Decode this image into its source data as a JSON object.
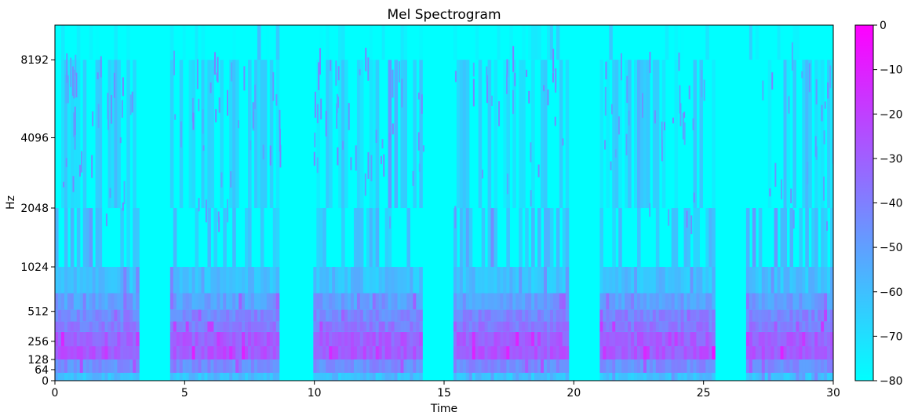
{
  "chart_data": {
    "type": "heatmap",
    "title": "Mel Spectrogram",
    "xlabel": "Time",
    "ylabel": "Hz",
    "xlim": [
      0,
      30
    ],
    "x_ticks": [
      0,
      5,
      10,
      15,
      20,
      25,
      30
    ],
    "y_scale": "mel",
    "y_ticks": [
      0,
      64,
      128,
      256,
      512,
      1024,
      2048,
      4096,
      8192
    ],
    "colormap": "cool",
    "colormap_endpoints": [
      "#00ffff",
      "#ff00ff"
    ],
    "colorbar": {
      "range_db": [
        -80,
        0
      ],
      "ticks": [
        0,
        -10,
        -20,
        -30,
        -40,
        -50,
        -60,
        -70,
        -80
      ]
    },
    "silent_gaps_seconds": [
      [
        3.2,
        4.2
      ],
      [
        8.7,
        9.8
      ],
      [
        14.2,
        15.3
      ],
      [
        19.8,
        20.9
      ],
      [
        25.5,
        26.4
      ]
    ],
    "active_segments_seconds": [
      [
        0.0,
        3.2
      ],
      [
        4.4,
        8.7
      ],
      [
        9.9,
        14.2
      ],
      [
        15.4,
        19.8
      ],
      [
        21.0,
        25.4
      ],
      [
        26.6,
        30.0
      ]
    ],
    "bands_db": [
      {
        "band_hz": [
          0,
          45
        ],
        "level_db": -60
      },
      {
        "band_hz": [
          45,
          128
        ],
        "level_db": -45
      },
      {
        "band_hz": [
          128,
          220
        ],
        "level_db": -28
      },
      {
        "band_hz": [
          220,
          330
        ],
        "level_db": -30
      },
      {
        "band_hz": [
          330,
          420
        ],
        "level_db": -38
      },
      {
        "band_hz": [
          420,
          530
        ],
        "level_db": -42
      },
      {
        "band_hz": [
          530,
          700
        ],
        "level_db": -50
      },
      {
        "band_hz": [
          700,
          1024
        ],
        "level_db": -60
      },
      {
        "band_hz": [
          1024,
          2048
        ],
        "level_db": -62
      },
      {
        "band_hz": [
          2048,
          8192
        ],
        "level_db": -68
      },
      {
        "band_hz": [
          8192,
          11000
        ],
        "level_db": -80
      }
    ]
  }
}
